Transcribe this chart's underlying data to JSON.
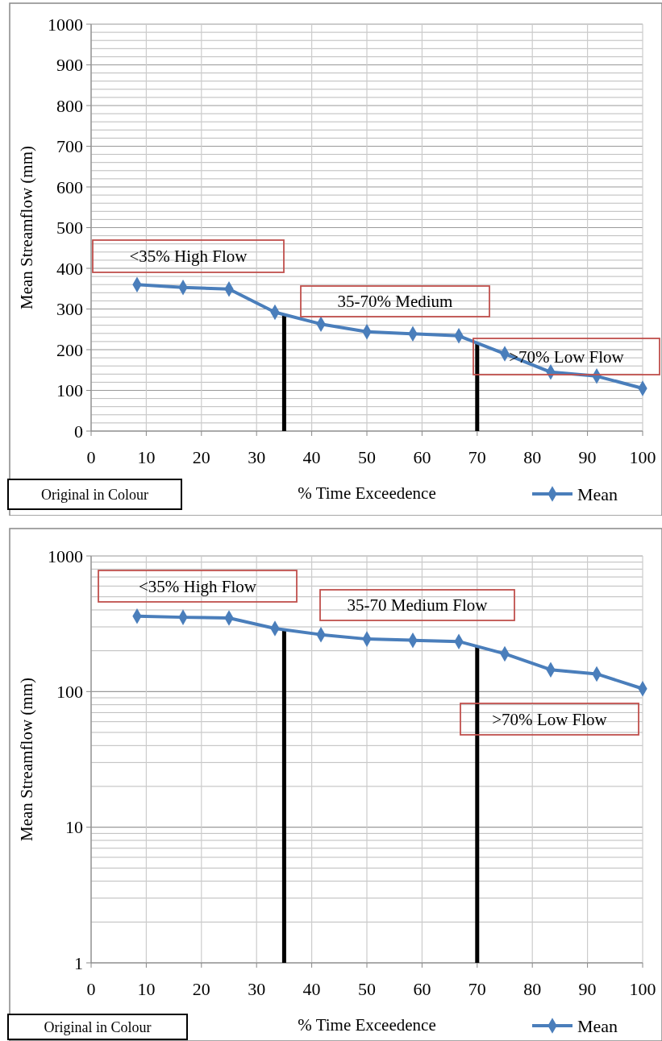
{
  "chart_data": [
    {
      "type": "line",
      "xlabel": "% Time Exceedence",
      "ylabel": "Mean Streamflow (mm)",
      "xlim": [
        0,
        100
      ],
      "ylim": [
        0,
        1000
      ],
      "xticks": [
        0,
        10,
        20,
        30,
        40,
        50,
        60,
        70,
        80,
        90,
        100
      ],
      "yticks": [
        0,
        100,
        200,
        300,
        400,
        500,
        600,
        700,
        800,
        900,
        1000
      ],
      "grid": true,
      "legend": "bottom right",
      "marker": "diamond",
      "line_style": "solid",
      "x": [
        8.33,
        16.67,
        25,
        33.33,
        41.67,
        50,
        58.33,
        66.67,
        75,
        83.33,
        91.67,
        100
      ],
      "series": [
        {
          "name": "Mean",
          "color": "#4a7ebb",
          "values": [
            360,
            353,
            349,
            292,
            263,
            244,
            239,
            234,
            190,
            145,
            135,
            105
          ]
        }
      ],
      "ref_lines": [
        {
          "axis": "x",
          "value": 35,
          "color": "#000000"
        },
        {
          "axis": "x",
          "value": 70,
          "color": "#000000"
        }
      ],
      "annotations": [
        "<35% High Flow",
        "35-70% Medium",
        ">70% Low Flow",
        "Original in Colour"
      ]
    },
    {
      "type": "line",
      "xlabel": "% Time Exceedence",
      "ylabel": "Mean Streamflow (mm)",
      "xlim": [
        0,
        100
      ],
      "ylim": [
        1,
        1000
      ],
      "xticks": [
        0,
        10,
        20,
        30,
        40,
        50,
        60,
        70,
        80,
        90,
        100
      ],
      "yticks": [
        1,
        10,
        100,
        1000
      ],
      "log": "y",
      "grid": true,
      "legend": "bottom right",
      "marker": "diamond",
      "line_style": "solid",
      "x": [
        8.33,
        16.67,
        25,
        33.33,
        41.67,
        50,
        58.33,
        66.67,
        75,
        83.33,
        91.67,
        100
      ],
      "series": [
        {
          "name": "Mean",
          "color": "#4a7ebb",
          "values": [
            360,
            353,
            349,
            292,
            263,
            244,
            239,
            234,
            190,
            145,
            135,
            105
          ]
        }
      ],
      "ref_lines": [
        {
          "axis": "x",
          "value": 35,
          "color": "#000000"
        },
        {
          "axis": "x",
          "value": 70,
          "color": "#000000"
        }
      ],
      "annotations": [
        "<35% High Flow",
        "35-70 Medium Flow",
        ">70% Low Flow",
        "Original in Colour"
      ]
    }
  ]
}
